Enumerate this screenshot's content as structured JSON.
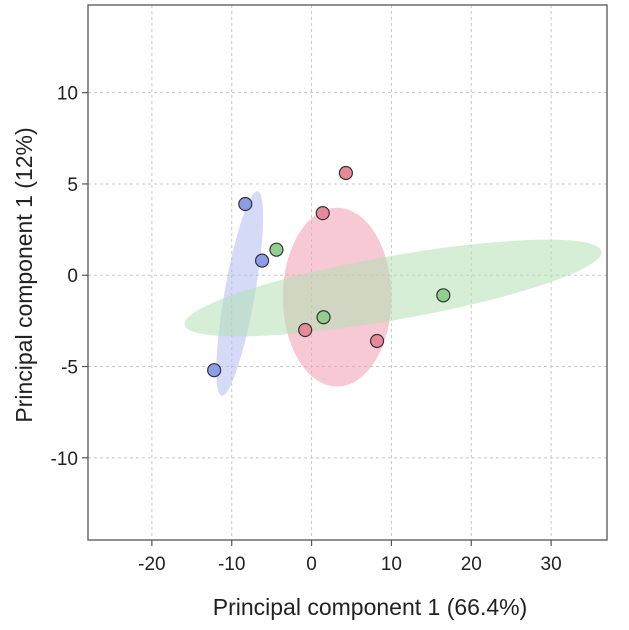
{
  "chart_data": {
    "type": "scatter",
    "title": "",
    "xlabel": "Principal component 1 (66.4%)",
    "ylabel": "Principal component 1  (12%)",
    "xlim": [
      -28,
      37
    ],
    "ylim": [
      -14.5,
      14.8
    ],
    "xticks": [
      -20,
      -10,
      0,
      10,
      20,
      30
    ],
    "yticks": [
      10,
      5,
      0,
      -5,
      -10
    ],
    "grid": true,
    "series": [
      {
        "name": "blue",
        "color": "#8c9de6",
        "ellipse_color": "#b3bbf0",
        "points": [
          [
            -8.3,
            3.9
          ],
          [
            -6.2,
            0.8
          ],
          [
            -12.2,
            -5.2
          ]
        ],
        "ellipse": {
          "cx": -9.0,
          "cy": -1.0,
          "rx": 13.0,
          "ry": 1.9,
          "angle_deg": -80
        }
      },
      {
        "name": "red",
        "color": "#e8899a",
        "ellipse_color": "#f19db0",
        "points": [
          [
            4.3,
            5.6
          ],
          [
            1.4,
            3.4
          ],
          [
            -0.8,
            -3.0
          ],
          [
            8.2,
            -3.6
          ]
        ],
        "ellipse": {
          "cx": 3.2,
          "cy": -1.2,
          "rx": 11.2,
          "ry": 6.8,
          "angle_deg": -90
        }
      },
      {
        "name": "green",
        "color": "#8fd08f",
        "ellipse_color": "#b2e0b2",
        "points": [
          [
            -4.4,
            1.4
          ],
          [
            1.5,
            -2.3
          ],
          [
            16.5,
            -1.1
          ]
        ],
        "ellipse": {
          "cx": 10.2,
          "cy": -0.7,
          "rx": 26.5,
          "ry": 4.0,
          "angle_deg": -10
        }
      }
    ]
  }
}
